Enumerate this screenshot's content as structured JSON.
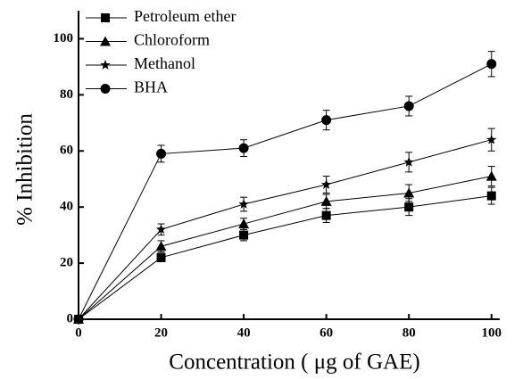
{
  "chart_data": {
    "type": "line",
    "x_label": "Concentration ( μg of GAE)",
    "y_label": "% Inhibition",
    "x": [
      0,
      20,
      40,
      60,
      80,
      100
    ],
    "series": [
      {
        "name": "Petroleum ether",
        "color": "#000000",
        "marker": "square",
        "values": [
          0,
          22,
          30,
          37,
          40,
          44
        ],
        "errors": [
          0,
          1.5,
          2,
          2.5,
          3,
          3
        ]
      },
      {
        "name": "Chloroform",
        "color": "#000000",
        "marker": "triangle",
        "values": [
          0,
          26,
          34,
          42,
          45,
          51
        ],
        "errors": [
          0,
          2,
          2,
          2.5,
          3,
          3.5
        ]
      },
      {
        "name": "Methanol",
        "color": "#000000",
        "marker": "star",
        "values": [
          0,
          32,
          41,
          48,
          56,
          64
        ],
        "errors": [
          0,
          2,
          2.5,
          3,
          3.5,
          4
        ]
      },
      {
        "name": "BHA",
        "color": "#000000",
        "marker": "circle",
        "values": [
          0,
          59,
          61,
          71,
          76,
          91
        ],
        "errors": [
          0,
          3,
          3,
          3.5,
          3.5,
          4.5
        ]
      }
    ],
    "xlim": [
      0,
      102
    ],
    "ylim": [
      0,
      110
    ],
    "xticks": [
      0,
      20,
      40,
      60,
      80,
      100
    ],
    "yticks": [
      0,
      20,
      40,
      60,
      80,
      100
    ],
    "legend": "upper left"
  }
}
